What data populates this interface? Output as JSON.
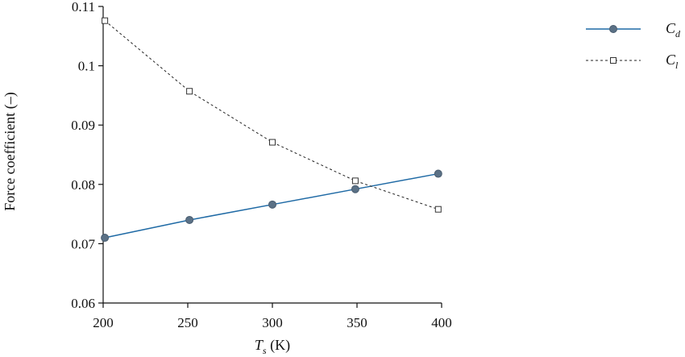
{
  "chart_data": {
    "type": "line",
    "title": "",
    "xlabel": {
      "base": "T",
      "sub": "s",
      "unit": " (K)"
    },
    "ylabel": "Force coefficient (–)",
    "xlim": [
      200,
      400
    ],
    "ylim": [
      0.06,
      0.11
    ],
    "xticks": [
      200,
      250,
      300,
      350,
      400
    ],
    "xtick_labels": [
      "200",
      "250",
      "300",
      "350",
      "400"
    ],
    "yticks": [
      0.06,
      0.07,
      0.08,
      0.09,
      0.1,
      0.11
    ],
    "ytick_labels": [
      "0.06",
      "0.07",
      "0.08",
      "0.09",
      "0.1",
      "0.11"
    ],
    "grid": false,
    "legend_position": "top-right, outside plot",
    "series": [
      {
        "name": "C_d",
        "label": {
          "base": "C",
          "sub": "d"
        },
        "x": [
          201,
          251,
          300,
          349,
          398
        ],
        "y": [
          0.071,
          0.074,
          0.0766,
          0.0792,
          0.0818
        ],
        "color": "#1f6aa5",
        "line_style": "solid",
        "marker": "circle",
        "marker_fill": "#5b7186"
      },
      {
        "name": "C_l",
        "label": {
          "base": "C",
          "sub": "l"
        },
        "x": [
          201,
          251,
          300,
          349,
          398
        ],
        "y": [
          0.1076,
          0.0957,
          0.0871,
          0.0806,
          0.0758
        ],
        "color": "#222222",
        "line_style": "dashed",
        "marker": "square",
        "marker_fill": "#ffffff"
      }
    ]
  }
}
